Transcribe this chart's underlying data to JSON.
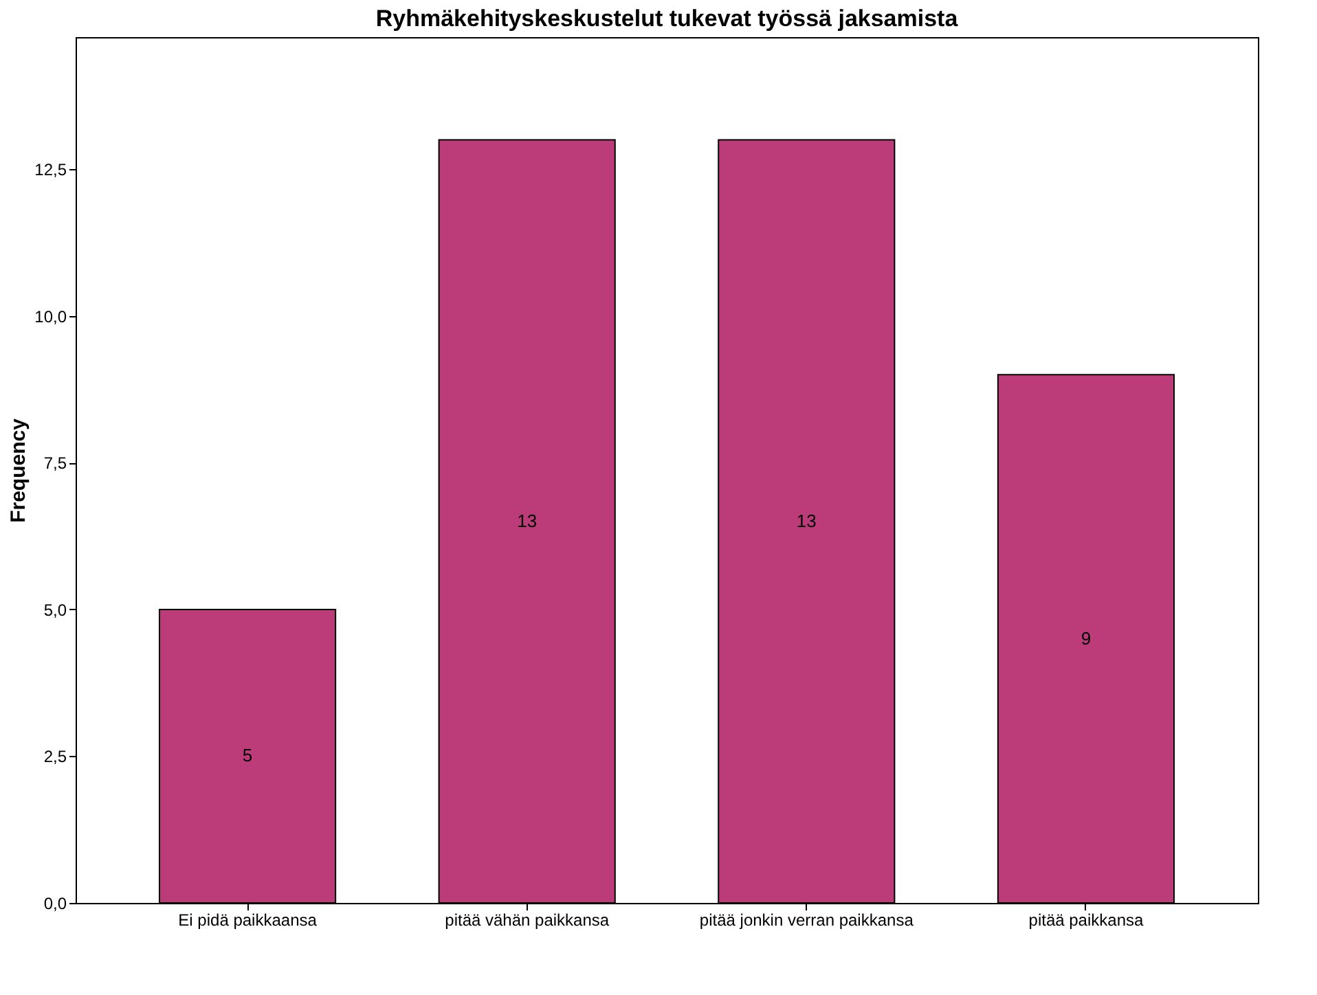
{
  "chart_data": {
    "type": "bar",
    "title": "Ryhmäkehityskeskustelut tukevat työssä jaksamista",
    "ylabel": "Frequency",
    "categories": [
      "Ei pidä paikkaansa",
      "pitää vähän paikkansa",
      "pitää jonkin verran paikkansa",
      "pitää paikkansa"
    ],
    "values": [
      5,
      13,
      13,
      9
    ],
    "color": "#bc3c7a",
    "data_labels": true,
    "grid": false,
    "ylim": [
      0,
      14.75
    ],
    "yticks": [
      {
        "value": 0,
        "label": "0,0"
      },
      {
        "value": 2.5,
        "label": "2,5"
      },
      {
        "value": 5,
        "label": "5,0"
      },
      {
        "value": 7.5,
        "label": "7,5"
      },
      {
        "value": 10,
        "label": "10,0"
      },
      {
        "value": 12.5,
        "label": "12,5"
      }
    ]
  }
}
